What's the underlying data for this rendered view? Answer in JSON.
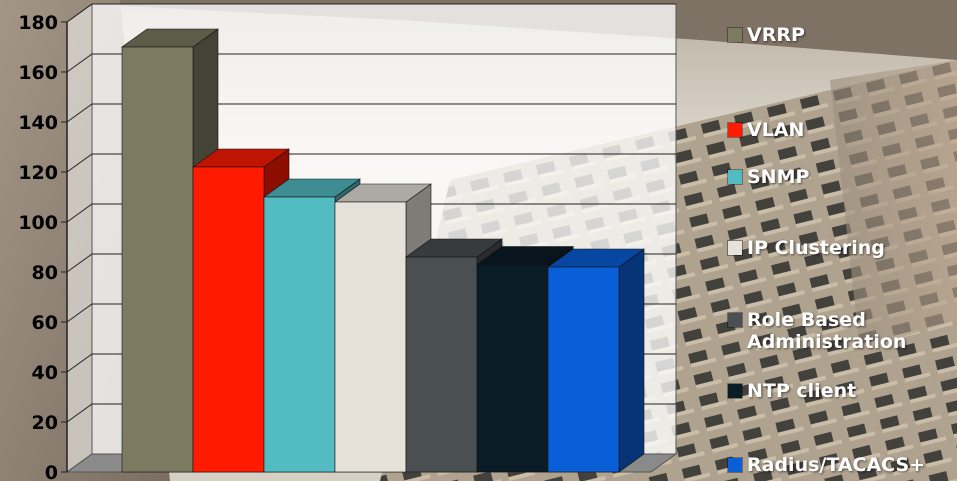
{
  "chart_data": {
    "type": "bar",
    "categories": [
      "VRRP",
      "VLAN",
      "SNMP",
      "IP Clustering",
      "Role Based Administration",
      "NTP client",
      "Radius/TACACS+"
    ],
    "values": [
      170,
      122,
      110,
      108,
      86,
      83,
      82
    ],
    "ylim": [
      0,
      180
    ],
    "ytick_labels": [
      "0",
      "20",
      "40",
      "60",
      "80",
      "100",
      "120",
      "140",
      "160",
      "180"
    ],
    "grid": true,
    "legend_position": "right",
    "colors": {
      "VRRP": "#7c7a60",
      "VLAN": "#ff1a00",
      "SNMP": "#52bcc2",
      "IP Clustering": "#e6e2da",
      "Role Based Administration": "#4a4f52",
      "NTP client": "#0a1c26",
      "Radius/TACACS+": "#0a5ed6"
    }
  }
}
